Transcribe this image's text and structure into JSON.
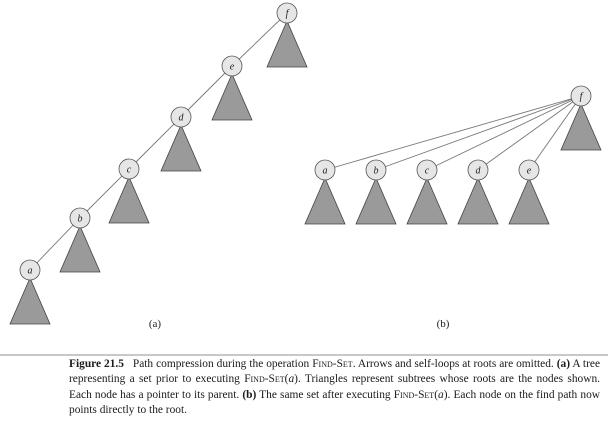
{
  "diagram_a": {
    "panel_label": "(a)",
    "nodes": [
      "f",
      "e",
      "d",
      "c",
      "b",
      "a"
    ]
  },
  "diagram_b": {
    "panel_label": "(b)",
    "root": "f",
    "children": [
      "a",
      "b",
      "c",
      "d",
      "e"
    ]
  },
  "caption": {
    "fig_label": "Figure 21.5",
    "t1": "Path compression during the operation ",
    "findset": "Find-Set",
    "t2": ". Arrows and self-loops at roots are omitted. ",
    "a_label": "(a)",
    "t3": " A tree representing a set prior to executing ",
    "arg": "a",
    "t4": "). Triangles represent subtrees whose roots are the nodes shown. Each node has a pointer to its parent. ",
    "b_label": "(b)",
    "t5": " The same set after executing ",
    "t6": "). Each node on the find path now points directly to the root."
  }
}
